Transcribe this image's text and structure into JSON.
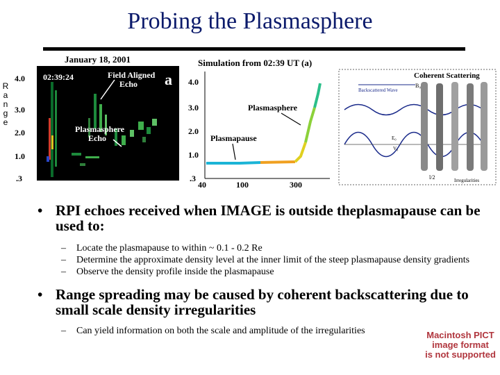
{
  "slide": {
    "title": "Probing the Plasmasphere",
    "range_letters": [
      "R",
      "a",
      "n",
      "g",
      "e"
    ]
  },
  "figure_a": {
    "date": "January 18, 2001",
    "time": "02:39:24",
    "panel_letter": "a",
    "label_field_aligned_1": "Field Aligned",
    "label_field_aligned_2": "Echo",
    "label_plasmasphere_1": "Plasmasphere",
    "label_plasmasphere_2": "Echo",
    "y_ticks": [
      "4.0",
      "3.0",
      "2.0",
      "1.0",
      ".3"
    ]
  },
  "figure_b": {
    "title": "Simulation from 02:39 UT (a)",
    "label_plasmasphere": "Plasmasphere",
    "label_plasmapause": "Plasmapause",
    "y_ticks": [
      "4.0",
      "3.0",
      "2.0",
      "1.0",
      ".3"
    ],
    "x_ticks": [
      "40",
      "100",
      "300"
    ]
  },
  "figure_c": {
    "title": "Coherent Scattering",
    "label_b0": "B₀",
    "label_backscattered": "Backscattered Wave",
    "label_e0": "E₀",
    "label_v0": "V₀",
    "label_half": "l/2",
    "label_irregularities": "Irregularities"
  },
  "bullets": [
    {
      "text": "RPI echoes received when IMAGE is outside theplasmapause can be used to:",
      "subs": [
        "Locate the plasmapause to within ~ 0.1 - 0.2 Re",
        "Determine the approximate density level at the inner limit of the steep plasmapause density gradients",
        "Observe the density profile inside the plasmapause"
      ]
    },
    {
      "text": "Range spreading may be caused by coherent backscattering due to small scale density irregularities",
      "subs": [
        "Can yield information on both the scale and amplitude of the irregularities"
      ]
    }
  ],
  "pict_notice": [
    "Macintosh PICT",
    "image format",
    "is not supported"
  ]
}
